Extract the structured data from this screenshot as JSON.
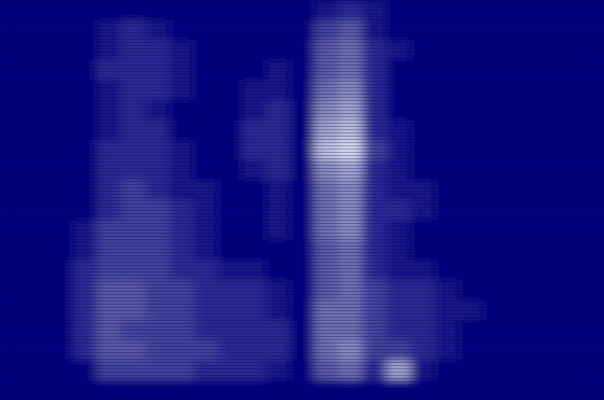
{
  "chart_data": {
    "type": "heatmap",
    "tick_labels": false,
    "zlim": [
      0,
      10
    ],
    "cells": [
      [
        0,
        0,
        0,
        0,
        0,
        0,
        0,
        0,
        0,
        0,
        0,
        0,
        0,
        1,
        2,
        1,
        0,
        0,
        0,
        0,
        0,
        0,
        0,
        0,
        0
      ],
      [
        0,
        0,
        0,
        0,
        1,
        2,
        1,
        0,
        0,
        0,
        0,
        0,
        0,
        3,
        4,
        1,
        0,
        0,
        0,
        0,
        0,
        0,
        0,
        0,
        0
      ],
      [
        0,
        0,
        0,
        0,
        1,
        2,
        2,
        1,
        0,
        0,
        0,
        0,
        0,
        4,
        5,
        2,
        1,
        0,
        0,
        0,
        0,
        0,
        0,
        0,
        0
      ],
      [
        0,
        0,
        0,
        0,
        2,
        2,
        2,
        1,
        0,
        0,
        0,
        1,
        0,
        4,
        5,
        2,
        0,
        0,
        0,
        0,
        0,
        0,
        0,
        0,
        0
      ],
      [
        0,
        0,
        0,
        0,
        1,
        2,
        2,
        1,
        0,
        0,
        1,
        1,
        0,
        5,
        6,
        2,
        0,
        0,
        0,
        0,
        0,
        0,
        0,
        0,
        0
      ],
      [
        0,
        0,
        0,
        0,
        1,
        2,
        1,
        0,
        0,
        0,
        1,
        2,
        0,
        6,
        7,
        2,
        0,
        0,
        0,
        0,
        0,
        0,
        0,
        0,
        0
      ],
      [
        0,
        0,
        0,
        0,
        1,
        2,
        2,
        0,
        0,
        0,
        2,
        2,
        0,
        7,
        8,
        2,
        1,
        0,
        0,
        0,
        0,
        0,
        0,
        0,
        0
      ],
      [
        0,
        0,
        0,
        0,
        2,
        2,
        2,
        1,
        0,
        0,
        2,
        2,
        0,
        8,
        9,
        3,
        1,
        0,
        0,
        0,
        0,
        0,
        0,
        0,
        0
      ],
      [
        0,
        0,
        0,
        0,
        2,
        2,
        2,
        1,
        0,
        0,
        1,
        2,
        0,
        6,
        7,
        2,
        1,
        0,
        0,
        0,
        0,
        0,
        0,
        0,
        0
      ],
      [
        0,
        0,
        0,
        0,
        2,
        3,
        2,
        1,
        1,
        0,
        0,
        1,
        0,
        5,
        6,
        2,
        1,
        1,
        0,
        0,
        0,
        0,
        0,
        0,
        0
      ],
      [
        0,
        0,
        0,
        0,
        2,
        3,
        3,
        2,
        1,
        0,
        0,
        1,
        0,
        5,
        6,
        2,
        2,
        1,
        0,
        0,
        0,
        0,
        0,
        0,
        0
      ],
      [
        0,
        0,
        0,
        1,
        3,
        3,
        3,
        2,
        1,
        0,
        0,
        1,
        0,
        5,
        6,
        2,
        1,
        0,
        0,
        0,
        0,
        0,
        0,
        0,
        0
      ],
      [
        0,
        0,
        0,
        1,
        3,
        3,
        3,
        2,
        1,
        0,
        0,
        0,
        0,
        4,
        5,
        2,
        1,
        0,
        0,
        0,
        0,
        0,
        0,
        0,
        0
      ],
      [
        0,
        0,
        0,
        2,
        3,
        3,
        3,
        2,
        2,
        1,
        1,
        0,
        0,
        4,
        5,
        2,
        1,
        1,
        0,
        0,
        0,
        0,
        0,
        0,
        0
      ],
      [
        0,
        0,
        0,
        2,
        4,
        4,
        3,
        3,
        2,
        2,
        2,
        1,
        0,
        4,
        5,
        3,
        2,
        2,
        1,
        0,
        0,
        0,
        0,
        0,
        0
      ],
      [
        0,
        0,
        0,
        2,
        4,
        4,
        3,
        3,
        2,
        2,
        2,
        1,
        0,
        5,
        5,
        3,
        2,
        2,
        1,
        1,
        0,
        0,
        0,
        0,
        0
      ],
      [
        0,
        0,
        0,
        2,
        4,
        3,
        3,
        3,
        2,
        2,
        2,
        2,
        0,
        5,
        5,
        3,
        2,
        2,
        1,
        0,
        0,
        0,
        0,
        0,
        0
      ],
      [
        0,
        0,
        0,
        2,
        4,
        4,
        3,
        3,
        3,
        2,
        2,
        2,
        0,
        5,
        6,
        3,
        3,
        2,
        1,
        0,
        0,
        0,
        0,
        0,
        0
      ],
      [
        0,
        0,
        0,
        0,
        3,
        3,
        3,
        3,
        2,
        2,
        2,
        1,
        0,
        4,
        5,
        2,
        7,
        1,
        0,
        0,
        0,
        0,
        0,
        0,
        0
      ],
      [
        0,
        0,
        0,
        0,
        0,
        0,
        0,
        0,
        0,
        0,
        0,
        0,
        0,
        0,
        0,
        0,
        0,
        0,
        0,
        0,
        0,
        0,
        0,
        0,
        0
      ]
    ]
  }
}
